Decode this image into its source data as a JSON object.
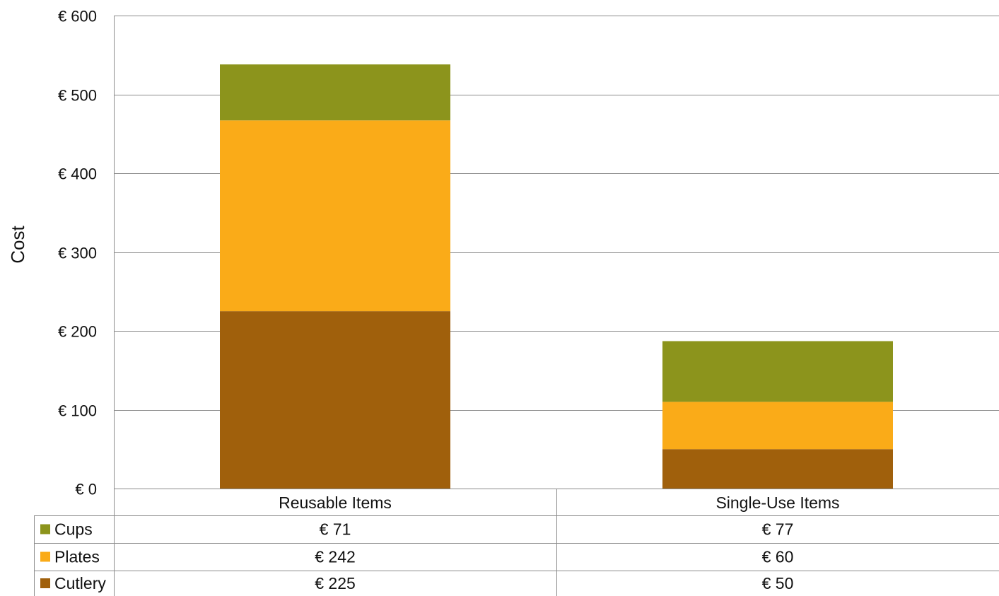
{
  "chart_data": {
    "type": "bar",
    "stacked": true,
    "categories": [
      "Reusable Items",
      "Single-Use Items"
    ],
    "series": [
      {
        "name": "Cutlery",
        "color": "#A0600C",
        "values": [
          225,
          50
        ],
        "labels": [
          "€ 225",
          "€ 50"
        ]
      },
      {
        "name": "Plates",
        "color": "#FAAB18",
        "values": [
          242,
          60
        ],
        "labels": [
          "€ 242",
          "€ 60"
        ]
      },
      {
        "name": "Cups",
        "color": "#8C941C",
        "values": [
          71,
          77
        ],
        "labels": [
          "€ 71",
          "€ 77"
        ]
      }
    ],
    "table_row_order": [
      "Cups",
      "Plates",
      "Cutlery"
    ],
    "ylabel": "Cost",
    "ylim": [
      0,
      600
    ],
    "yticks": [
      0,
      100,
      200,
      300,
      400,
      500,
      600
    ],
    "ytick_labels": [
      "€ 0",
      "€ 100",
      "€ 200",
      "€ 300",
      "€ 400",
      "€ 500",
      "€ 600"
    ],
    "grid": true,
    "legend": "data-table"
  }
}
